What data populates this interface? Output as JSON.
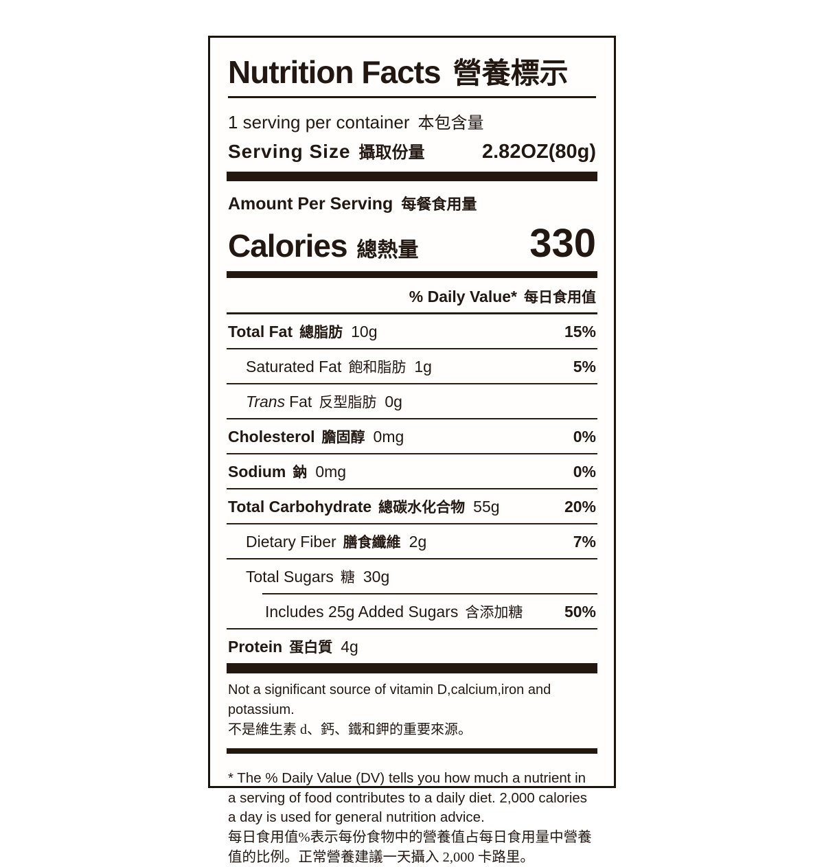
{
  "colors": {
    "text": "#231712",
    "bar": "#241710",
    "rule": "#2a1b12",
    "background": "#ffffff"
  },
  "label": {
    "title": {
      "en": "Nutrition Facts",
      "zh": "營養標示"
    },
    "servings_per_container": {
      "en": "1 serving per container",
      "zh": "本包含量"
    },
    "serving_size": {
      "en": "Serving Size",
      "zh": "攝取份量",
      "value": "2.82OZ(80g)"
    },
    "amount_per_serving": {
      "en": "Amount Per Serving",
      "zh": "每餐食用量"
    },
    "calories": {
      "en": "Calories",
      "zh": "總熱量",
      "value": "330"
    },
    "daily_value_header": {
      "en": "% Daily Value*",
      "zh": "每日食用值"
    },
    "nutrients": [
      {
        "name_en": "Total Fat",
        "name_zh": "總脂肪",
        "amount": "10g",
        "dv": "15%"
      },
      {
        "name_en": "Saturated Fat",
        "name_zh": "飽和脂肪",
        "amount": "1g",
        "dv": "5%"
      },
      {
        "name_en_italic": "Trans",
        "name_en": "Fat",
        "name_zh": "反型脂肪",
        "amount": "0g",
        "dv": ""
      },
      {
        "name_en": "Cholesterol",
        "name_zh": "膽固醇",
        "amount": "0mg",
        "dv": "0%"
      },
      {
        "name_en": "Sodium",
        "name_zh": "鈉",
        "amount": "0mg",
        "dv": "0%"
      },
      {
        "name_en": "Total Carbohydrate",
        "name_zh": "總碳水化合物",
        "amount": "55g",
        "dv": "20%"
      },
      {
        "name_en": "Dietary Fiber",
        "name_zh": "膳食纖維",
        "amount": "2g",
        "dv": "7%"
      },
      {
        "name_en": "Total Sugars",
        "name_zh": "糖",
        "amount": "30g",
        "dv": ""
      },
      {
        "name_en": "Includes 25g Added Sugars",
        "name_zh": "含添加糖",
        "amount": "",
        "dv": "50%"
      },
      {
        "name_en": "Protein",
        "name_zh": "蛋白質",
        "amount": "4g",
        "dv": ""
      }
    ],
    "not_significant": {
      "en": "Not a significant source of vitamin D,calcium,iron and potassium.",
      "zh": "不是維生素 d、鈣、鐵和鉀的重要來源。"
    },
    "footnote": {
      "en": "* The % Daily Value (DV) tells you how much a nutrient in a serving of food contributes to a daily diet. 2,000 calories a day is used for general nutrition advice.",
      "zh": "每日食用值%表示每份食物中的營養值占每日食用量中營養值的比例。正常營養建議一天攝入 2,000 卡路里。"
    }
  }
}
